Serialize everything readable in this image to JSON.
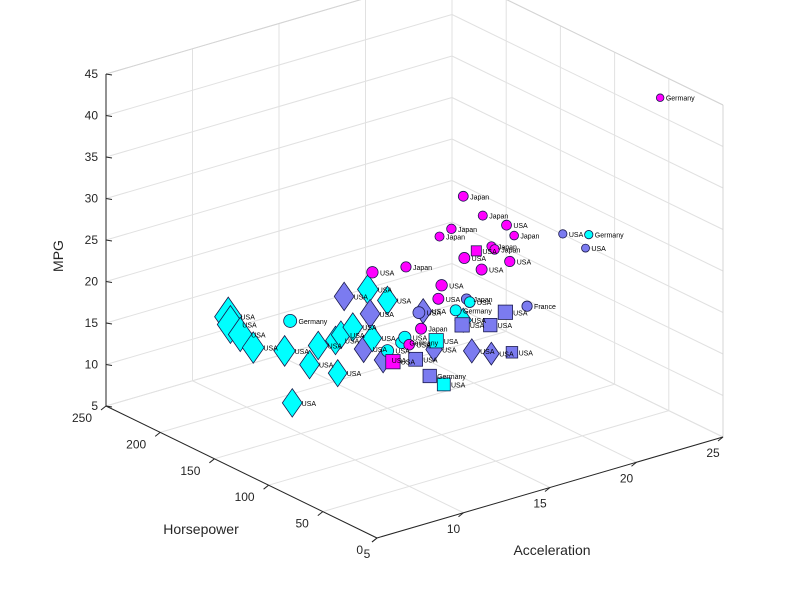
{
  "chart_data": {
    "type": "scatter",
    "projection": "3d",
    "xlabel": "Acceleration",
    "ylabel": "Horsepower",
    "zlabel": "MPG",
    "x_ticks": [
      "5",
      "10",
      "15",
      "20",
      "25"
    ],
    "y_ticks": [
      "0",
      "50",
      "100",
      "150",
      "200",
      "250"
    ],
    "z_ticks": [
      "5",
      "10",
      "15",
      "20",
      "25",
      "30",
      "35",
      "40",
      "45"
    ],
    "xlim": [
      5,
      25
    ],
    "ylim": [
      0,
      250
    ],
    "zlim": [
      5,
      45
    ],
    "grid": true,
    "legend": "none",
    "marker_size_encodes": "Horsepower",
    "group_styles": [
      {
        "group": "cyan-diamond",
        "marker": "diamond",
        "color": "#00FFFF"
      },
      {
        "group": "blue-diamond",
        "marker": "diamond",
        "color": "#7B7BF0"
      },
      {
        "group": "magenta-circle",
        "marker": "circle",
        "color": "#FF00FF"
      },
      {
        "group": "blue-circle",
        "marker": "circle",
        "color": "#7B7BF0"
      },
      {
        "group": "cyan-circle",
        "marker": "circle",
        "color": "#00FFFF"
      },
      {
        "group": "blue-square",
        "marker": "square",
        "color": "#7B7BF0"
      },
      {
        "group": "magenta-square",
        "marker": "square",
        "color": "#FF00FF"
      },
      {
        "group": "cyan-square",
        "marker": "square",
        "color": "#00FFFF"
      }
    ],
    "points": [
      {
        "x": 10.0,
        "y": 215,
        "z": 14,
        "marker": "diamond",
        "color": "#00FFFF",
        "label": "USA"
      },
      {
        "x": 10.5,
        "y": 225,
        "z": 14,
        "marker": "diamond",
        "color": "#00FFFF",
        "label": "USA"
      },
      {
        "x": 9.0,
        "y": 190,
        "z": 15,
        "marker": "diamond",
        "color": "#00FFFF",
        "label": "USA"
      },
      {
        "x": 8.5,
        "y": 170,
        "z": 15,
        "marker": "diamond",
        "color": "#00FFFF",
        "label": "USA"
      },
      {
        "x": 10.0,
        "y": 165,
        "z": 14,
        "marker": "diamond",
        "color": "#00FFFF",
        "label": "USA"
      },
      {
        "x": 9.5,
        "y": 150,
        "z": 9,
        "marker": "diamond",
        "color": "#00FFFF",
        "label": "USA"
      },
      {
        "x": 11.0,
        "y": 150,
        "z": 15,
        "marker": "diamond",
        "color": "#00FFFF",
        "label": "USA"
      },
      {
        "x": 10.5,
        "y": 150,
        "z": 13,
        "marker": "diamond",
        "color": "#00FFFF",
        "label": "USA"
      },
      {
        "x": 12.0,
        "y": 150,
        "z": 15,
        "marker": "diamond",
        "color": "#00FFFF",
        "label": "USA"
      },
      {
        "x": 11.5,
        "y": 140,
        "z": 12,
        "marker": "diamond",
        "color": "#00FFFF",
        "label": "USA"
      },
      {
        "x": 13.0,
        "y": 150,
        "z": 16,
        "marker": "diamond",
        "color": "#00FFFF",
        "label": "USA"
      },
      {
        "x": 12.0,
        "y": 145,
        "z": 16,
        "marker": "diamond",
        "color": "#00FFFF",
        "label": "USA"
      },
      {
        "x": 13.5,
        "y": 140,
        "z": 15,
        "marker": "diamond",
        "color": "#00FFFF",
        "label": "USA"
      },
      {
        "x": 12.5,
        "y": 150,
        "z": 20,
        "marker": "diamond",
        "color": "#7B7BF0",
        "label": "USA"
      },
      {
        "x": 13.0,
        "y": 140,
        "z": 14,
        "marker": "diamond",
        "color": "#7B7BF0",
        "label": "USA"
      },
      {
        "x": 13.5,
        "y": 130,
        "z": 13,
        "marker": "diamond",
        "color": "#7B7BF0",
        "label": "USA"
      },
      {
        "x": 14.0,
        "y": 150,
        "z": 17,
        "marker": "diamond",
        "color": "#7B7BF0",
        "label": "USA"
      },
      {
        "x": 14.5,
        "y": 160,
        "z": 19,
        "marker": "diamond",
        "color": "#00FFFF",
        "label": "USA"
      },
      {
        "x": 15.0,
        "y": 150,
        "z": 18,
        "marker": "diamond",
        "color": "#00FFFF",
        "label": "USA"
      },
      {
        "x": 15.5,
        "y": 125,
        "z": 18,
        "marker": "diamond",
        "color": "#7B7BF0",
        "label": "USA"
      },
      {
        "x": 15.5,
        "y": 115,
        "z": 14,
        "marker": "diamond",
        "color": "#7B7BF0",
        "label": "USA"
      },
      {
        "x": 17.5,
        "y": 120,
        "z": 16,
        "marker": "diamond",
        "color": "#00FFFF",
        "label": "USA"
      },
      {
        "x": 18.5,
        "y": 110,
        "z": 12,
        "marker": "diamond",
        "color": "#7B7BF0",
        "label": "USA"
      },
      {
        "x": 18.0,
        "y": 120,
        "z": 12,
        "marker": "diamond",
        "color": "#7B7BF0",
        "label": "USA"
      },
      {
        "x": 11.0,
        "y": 100,
        "z": 27,
        "marker": "circle",
        "color": "#FF00FF",
        "label": "USA"
      },
      {
        "x": 12.0,
        "y": 85,
        "z": 28,
        "marker": "circle",
        "color": "#FF00FF",
        "label": "Japan"
      },
      {
        "x": 12.5,
        "y": 90,
        "z": 18,
        "marker": "circle",
        "color": "#FF00FF",
        "label": "USA"
      },
      {
        "x": 13.5,
        "y": 95,
        "z": 19,
        "marker": "circle",
        "color": "#FF00FF",
        "label": "Japan"
      },
      {
        "x": 13.0,
        "y": 70,
        "z": 32,
        "marker": "circle",
        "color": "#FF00FF",
        "label": "Japan"
      },
      {
        "x": 14.0,
        "y": 75,
        "z": 32,
        "marker": "circle",
        "color": "#FF00FF",
        "label": "Japan"
      },
      {
        "x": 15.0,
        "y": 80,
        "z": 35,
        "marker": "circle",
        "color": "#FF00FF",
        "label": "Japan"
      },
      {
        "x": 15.5,
        "y": 70,
        "z": 33,
        "marker": "circle",
        "color": "#FF00FF",
        "label": "Japan"
      },
      {
        "x": 16.0,
        "y": 70,
        "z": 29,
        "marker": "circle",
        "color": "#FF00FF",
        "label": "Japan"
      },
      {
        "x": 16.5,
        "y": 75,
        "z": 28,
        "marker": "circle",
        "color": "#FF00FF",
        "label": "Japan"
      },
      {
        "x": 17.0,
        "y": 65,
        "z": 30,
        "marker": "circle",
        "color": "#FF00FF",
        "label": "Japan"
      },
      {
        "x": 17.5,
        "y": 80,
        "z": 30,
        "marker": "circle",
        "color": "#FF00FF",
        "label": "USA"
      },
      {
        "x": 16.0,
        "y": 95,
        "z": 26,
        "marker": "circle",
        "color": "#FF00FF",
        "label": "USA"
      },
      {
        "x": 17.0,
        "y": 95,
        "z": 24,
        "marker": "circle",
        "color": "#FF00FF",
        "label": "USA"
      },
      {
        "x": 18.0,
        "y": 85,
        "z": 25,
        "marker": "circle",
        "color": "#FF00FF",
        "label": "USA"
      },
      {
        "x": 14.5,
        "y": 95,
        "z": 22,
        "marker": "circle",
        "color": "#FF00FF",
        "label": "USA"
      },
      {
        "x": 15.0,
        "y": 100,
        "z": 23,
        "marker": "circle",
        "color": "#FF00FF",
        "label": "USA"
      },
      {
        "x": 15.5,
        "y": 85,
        "z": 22,
        "marker": "circle",
        "color": "#7B7BF0",
        "label": "Japan"
      },
      {
        "x": 14.0,
        "y": 105,
        "z": 20,
        "marker": "circle",
        "color": "#7B7BF0",
        "label": "USA"
      },
      {
        "x": 13.0,
        "y": 105,
        "z": 17,
        "marker": "circle",
        "color": "#00FFFF",
        "label": "Germany"
      },
      {
        "x": 12.5,
        "y": 110,
        "z": 16,
        "marker": "circle",
        "color": "#00FFFF",
        "label": "USA"
      },
      {
        "x": 13.5,
        "y": 110,
        "z": 17,
        "marker": "circle",
        "color": "#00FFFF",
        "label": "USA"
      },
      {
        "x": 15.5,
        "y": 95,
        "z": 20,
        "marker": "circle",
        "color": "#00FFFF",
        "label": "Germany"
      },
      {
        "x": 16.0,
        "y": 90,
        "z": 21,
        "marker": "circle",
        "color": "#00FFFF",
        "label": "USA"
      },
      {
        "x": 7.5,
        "y": 120,
        "z": 22,
        "marker": "circle",
        "color": "#00FFFF",
        "label": "Germany"
      },
      {
        "x": 19.5,
        "y": 60,
        "z": 29,
        "marker": "circle",
        "color": "#7B7BF0",
        "label": "USA"
      },
      {
        "x": 20.5,
        "y": 55,
        "z": 27,
        "marker": "circle",
        "color": "#7B7BF0",
        "label": "USA"
      },
      {
        "x": 21.0,
        "y": 60,
        "z": 28,
        "marker": "circle",
        "color": "#00FFFF",
        "label": "Germany"
      },
      {
        "x": 24.5,
        "y": 50,
        "z": 43,
        "marker": "circle",
        "color": "#FF00FF",
        "label": "Germany"
      },
      {
        "x": 19.0,
        "y": 85,
        "z": 19,
        "marker": "circle",
        "color": "#7B7BF0",
        "label": "France"
      },
      {
        "x": 12.5,
        "y": 105,
        "z": 15,
        "marker": "square",
        "color": "#FF00FF",
        "label": "USA"
      },
      {
        "x": 13.5,
        "y": 100,
        "z": 15,
        "marker": "square",
        "color": "#7B7BF0",
        "label": "USA"
      },
      {
        "x": 14.0,
        "y": 95,
        "z": 13,
        "marker": "square",
        "color": "#7B7BF0",
        "label": "Germany"
      },
      {
        "x": 14.5,
        "y": 90,
        "z": 12,
        "marker": "square",
        "color": "#00FFFF",
        "label": "USA"
      },
      {
        "x": 15.0,
        "y": 105,
        "z": 16,
        "marker": "square",
        "color": "#00FFFF",
        "label": "USA"
      },
      {
        "x": 16.5,
        "y": 105,
        "z": 17,
        "marker": "square",
        "color": "#7B7BF0",
        "label": "USA"
      },
      {
        "x": 17.5,
        "y": 95,
        "z": 17,
        "marker": "square",
        "color": "#7B7BF0",
        "label": "USA"
      },
      {
        "x": 17.5,
        "y": 75,
        "z": 15,
        "marker": "square",
        "color": "#7B7BF0",
        "label": "USA"
      },
      {
        "x": 14.5,
        "y": 60,
        "z": 30,
        "marker": "square",
        "color": "#FF00FF",
        "label": "USA"
      },
      {
        "x": 19.0,
        "y": 105,
        "z": 17,
        "marker": "square",
        "color": "#7B7BF0",
        "label": "USA"
      }
    ]
  }
}
